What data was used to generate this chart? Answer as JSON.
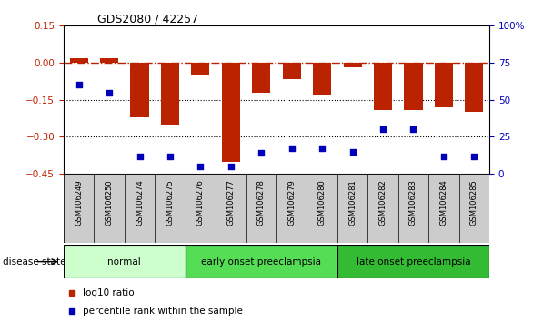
{
  "title": "GDS2080 / 42257",
  "samples": [
    "GSM106249",
    "GSM106250",
    "GSM106274",
    "GSM106275",
    "GSM106276",
    "GSM106277",
    "GSM106278",
    "GSM106279",
    "GSM106280",
    "GSM106281",
    "GSM106282",
    "GSM106283",
    "GSM106284",
    "GSM106285"
  ],
  "log10_ratio": [
    0.02,
    0.02,
    -0.22,
    -0.25,
    -0.05,
    -0.4,
    -0.12,
    -0.065,
    -0.13,
    -0.02,
    -0.19,
    -0.19,
    -0.18,
    -0.2
  ],
  "percentile_rank": [
    60,
    55,
    12,
    12,
    5,
    5,
    14,
    17,
    17,
    15,
    30,
    30,
    12,
    12
  ],
  "groups": [
    {
      "label": "normal",
      "start": 0,
      "end": 4,
      "color": "#ccffcc"
    },
    {
      "label": "early onset preeclampsia",
      "start": 4,
      "end": 9,
      "color": "#55dd55"
    },
    {
      "label": "late onset preeclampsia",
      "start": 9,
      "end": 14,
      "color": "#33bb33"
    }
  ],
  "ylim_left": [
    -0.45,
    0.15
  ],
  "ylim_right": [
    0,
    100
  ],
  "yticks_left": [
    0.15,
    0.0,
    -0.15,
    -0.3,
    -0.45
  ],
  "yticks_right": [
    100,
    75,
    50,
    25,
    0
  ],
  "dotted_lines": [
    -0.15,
    -0.3
  ],
  "bar_color": "#bb2200",
  "scatter_color": "#0000bb",
  "disease_state_label": "disease state",
  "legend_log10": "log10 ratio",
  "legend_pct": "percentile rank within the sample",
  "bar_width": 0.6,
  "tick_bg_color": "#cccccc",
  "fig_bg": "#ffffff"
}
